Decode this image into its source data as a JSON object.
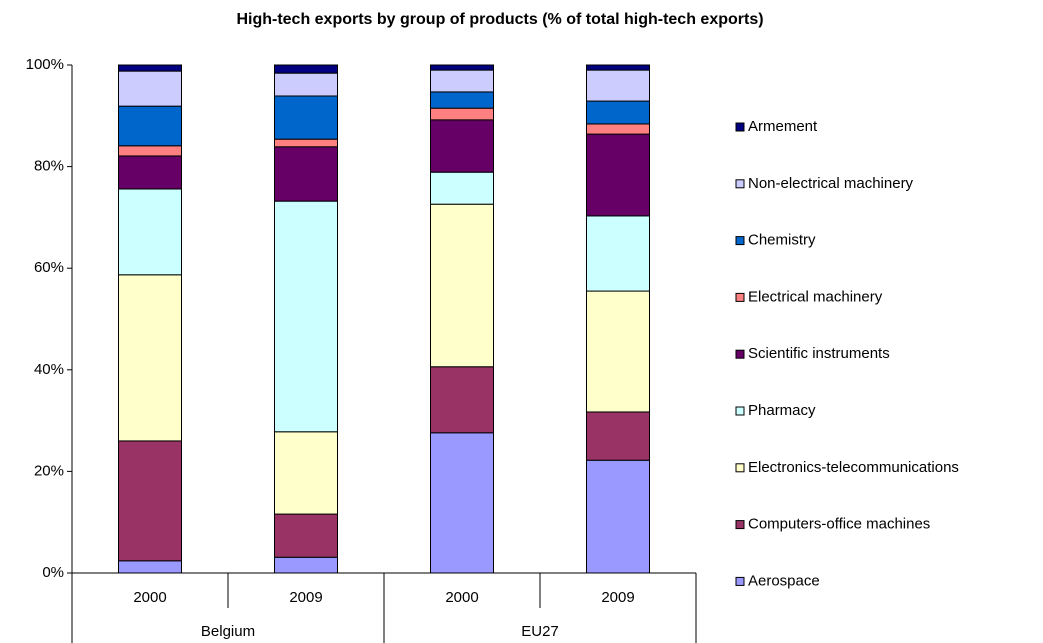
{
  "chart_data": {
    "type": "stacked-bar",
    "title": "High-tech exports by group of products (% of total high-tech exports)",
    "categories": [
      "2000",
      "2009",
      "2000",
      "2009"
    ],
    "group_labels": [
      "Belgium",
      "EU27"
    ],
    "ylim": [
      0,
      100
    ],
    "yticks": [
      {
        "value": 0,
        "label": "0%"
      },
      {
        "value": 20,
        "label": "20%"
      },
      {
        "value": 40,
        "label": "40%"
      },
      {
        "value": 60,
        "label": "60%"
      },
      {
        "value": 80,
        "label": "80%"
      },
      {
        "value": 100,
        "label": "100%"
      }
    ],
    "grid": false,
    "legend": "right",
    "series": [
      {
        "name": "Aerospace",
        "color": "#9999ff",
        "values": [
          2.4,
          3.1,
          27.6,
          22.2
        ]
      },
      {
        "name": "Computers-office machines",
        "color": "#993366",
        "values": [
          23.6,
          8.5,
          13.0,
          9.5
        ]
      },
      {
        "name": "Electronics-telecommunications",
        "color": "#ffffcc",
        "values": [
          32.7,
          16.2,
          32.0,
          23.8
        ]
      },
      {
        "name": "Pharmacy",
        "color": "#ccffff",
        "values": [
          16.9,
          45.4,
          6.3,
          14.8
        ]
      },
      {
        "name": "Scientific instruments",
        "color": "#660066",
        "values": [
          6.5,
          10.7,
          10.3,
          16.1
        ]
      },
      {
        "name": "Electrical machinery",
        "color": "#ff8080",
        "values": [
          2.0,
          1.5,
          2.3,
          2.0
        ]
      },
      {
        "name": "Chemistry",
        "color": "#0066cc",
        "values": [
          7.8,
          8.5,
          3.2,
          4.5
        ]
      },
      {
        "name": "Non-electrical machinery",
        "color": "#ccccff",
        "values": [
          6.9,
          4.5,
          4.3,
          6.1
        ]
      },
      {
        "name": "Armement",
        "color": "#000080",
        "values": [
          1.2,
          1.6,
          1.0,
          1.0
        ]
      }
    ]
  }
}
